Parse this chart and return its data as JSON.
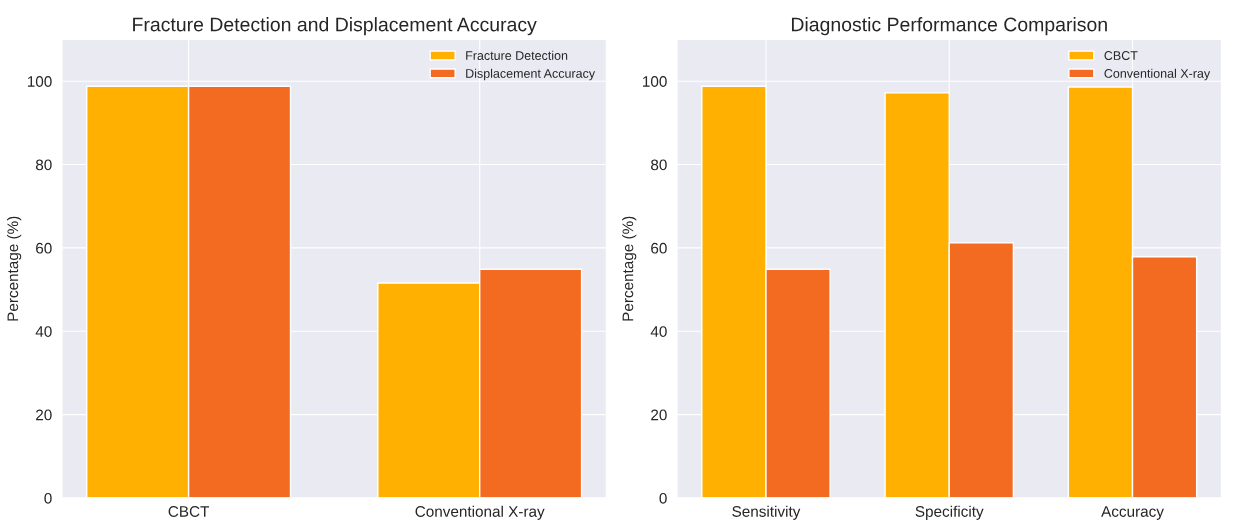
{
  "chart_data": [
    {
      "type": "bar",
      "title": "Fracture Detection and Displacement Accuracy",
      "ylabel": "Percentage (%)",
      "categories": [
        "CBCT",
        "Conventional X-ray"
      ],
      "series": [
        {
          "name": "Fracture Detection",
          "color": "#ffb000",
          "values": [
            98.8,
            51.6
          ]
        },
        {
          "name": "Displacement Accuracy",
          "color": "#f26b21",
          "values": [
            98.8,
            54.9
          ]
        }
      ],
      "ylim": [
        0,
        110
      ],
      "yticks": [
        0,
        20,
        40,
        60,
        80,
        100
      ],
      "grid": true,
      "legend": "top right"
    },
    {
      "type": "bar",
      "title": "Diagnostic Performance Comparison",
      "ylabel": "Percentage (%)",
      "categories": [
        "Sensitivity",
        "Specificity",
        "Accuracy"
      ],
      "series": [
        {
          "name": "CBCT",
          "color": "#ffb000",
          "values": [
            98.8,
            97.2,
            98.6
          ]
        },
        {
          "name": "Conventional X-ray",
          "color": "#f26b21",
          "values": [
            54.9,
            61.2,
            57.9
          ]
        }
      ],
      "ylim": [
        0,
        110
      ],
      "yticks": [
        0,
        20,
        40,
        60,
        80,
        100
      ],
      "grid": true,
      "legend": "top right"
    }
  ]
}
